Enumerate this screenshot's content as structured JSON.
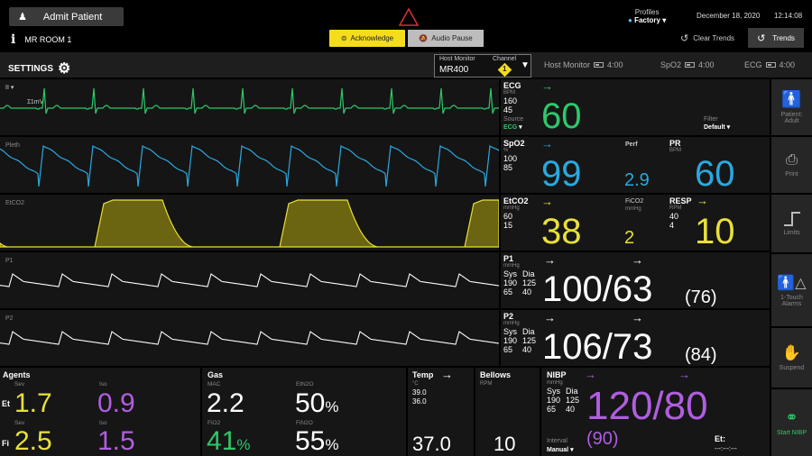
{
  "header": {
    "admit_label": "Admit Patient",
    "room": "MR ROOM 1",
    "info_icon": "i",
    "acknowledge": "Acknowledge",
    "audio_pause": "Audio Pause",
    "profiles_label": "Profiles",
    "profile": "Factory",
    "date": "December 18, 2020",
    "time": "12:14:08",
    "clear_trends": "Clear Trends",
    "trends": "Trends"
  },
  "settings_bar": {
    "settings": "SETTINGS",
    "host_monitor_label": "Host Monitor",
    "channel_label": "Channel",
    "host_value": "MR400",
    "channel_value": "1",
    "status": [
      {
        "name": "Host Monitor",
        "time": "4:00"
      },
      {
        "name": "SpO2",
        "time": "4:00"
      },
      {
        "name": "ECG",
        "time": "4:00"
      }
    ]
  },
  "waveforms": {
    "ecg_lead": "II",
    "ecg_scale": "1mV",
    "pleth": "Pleth",
    "etco2": "EtCO2",
    "p1": "P1",
    "p2": "P2",
    "colors": {
      "ecg": "#2ec86a",
      "pleth": "#2aa8e0",
      "etco2": "#e8e03a",
      "p": "#ffffff"
    }
  },
  "numerics": {
    "ecg": {
      "label": "ECG",
      "unit": "BPM",
      "high": "160",
      "low": "45",
      "source_label": "Source",
      "source": "ECG",
      "value": "60",
      "filter_label": "Filter",
      "filter": "Default"
    },
    "spo2": {
      "label": "SpO2",
      "unit": "%",
      "high": "100",
      "low": "85",
      "value": "99",
      "perf_label": "Perf",
      "perf": "2.9",
      "pr_label": "PR",
      "pr_unit": "BPM",
      "pr": "60"
    },
    "etco2": {
      "label": "EtCO2",
      "unit": "mmHg",
      "high": "60",
      "low": "15",
      "value": "38",
      "fico2_label": "FiCO2",
      "fico2_unit": "mmHg",
      "fico2": "2",
      "resp_label": "RESP",
      "resp_unit": "RPM",
      "resp_high": "40",
      "resp_low": "4",
      "resp": "10"
    },
    "p1": {
      "label": "P1",
      "unit": "mmHg",
      "sys": "Sys",
      "dia": "Dia",
      "sys_high": "190",
      "dia_high": "125",
      "sys_low": "65",
      "dia_low": "40",
      "value": "100/63",
      "mean": "(76)"
    },
    "p2": {
      "label": "P2",
      "unit": "mmHg",
      "sys": "Sys",
      "dia": "Dia",
      "sys_high": "190",
      "dia_high": "125",
      "sys_low": "65",
      "dia_low": "40",
      "value": "106/73",
      "mean": "(84)"
    }
  },
  "sidebar": {
    "patient": "Patient: Adult",
    "print": "Print",
    "limits": "Limits",
    "one_touch": "1-Touch Alarms",
    "suspend": "Suspend",
    "start_nibp": "Start NIBP"
  },
  "bottom": {
    "agents": {
      "title": "Agents",
      "et": "Et",
      "fi": "Fi",
      "sev": "Sev",
      "iso": "Iso",
      "et_sev": "1.7",
      "et_iso": "0.9",
      "fi_sev": "2.5",
      "fi_iso": "1.5"
    },
    "gas": {
      "title": "Gas",
      "mac_label": "MAC",
      "mac": "2.2",
      "etn2o_label": "EtN2O",
      "etn2o": "50",
      "fio2_label": "FiO2",
      "fio2": "41",
      "fin2o_label": "FiN2O",
      "fin2o": "55",
      "pct": "%"
    },
    "temp": {
      "title": "Temp",
      "unit": "°C",
      "high": "39.0",
      "low": "36.0",
      "value": "37.0"
    },
    "bellows": {
      "title": "Bellows",
      "unit": "RPM",
      "value": "10"
    },
    "nibp": {
      "title": "NIBP",
      "unit": "mmHg",
      "sys": "Sys",
      "dia": "Dia",
      "sys_high": "190",
      "dia_high": "125",
      "sys_low": "65",
      "dia_low": "40",
      "value": "120/80",
      "mean": "(90)",
      "interval_label": "Interval",
      "interval": "Manual",
      "et_label": "Et:",
      "et_value": "---:---:---"
    }
  }
}
